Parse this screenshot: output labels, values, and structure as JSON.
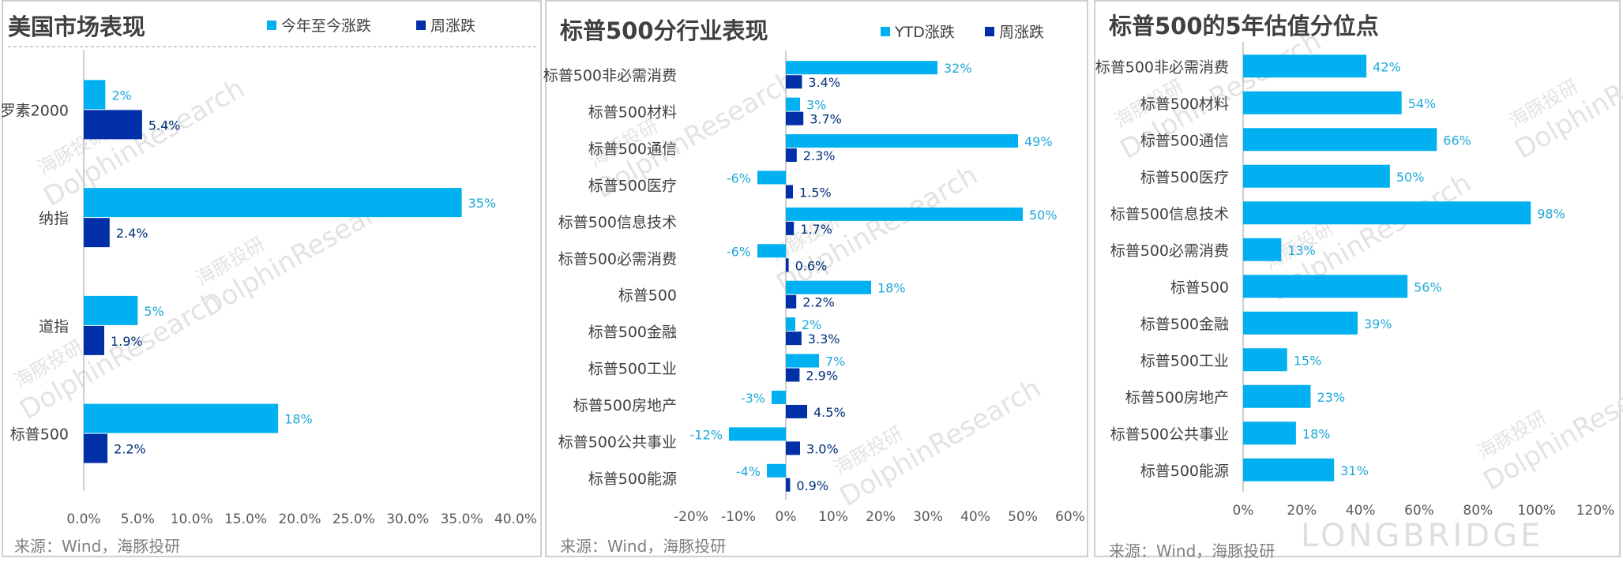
{
  "colors": {
    "ytd": "#00B0F0",
    "weekly": "#002FA7",
    "axis": "#bfbfbf",
    "label_ytd": "#1fa8d8",
    "label_weekly": "#002f7a"
  },
  "watermark": {
    "brand_en": "DolphinResearch",
    "brand_cn": "海豚投研",
    "logo": "LONGBRIDGE"
  },
  "chart_data": [
    {
      "type": "bar",
      "orientation": "horizontal",
      "title": "美国市场表现",
      "categories": [
        "罗素2000",
        "纳指",
        "道指",
        "标普500"
      ],
      "series": [
        {
          "name": "今年至今涨跌",
          "values": [
            2,
            35,
            5,
            18
          ],
          "labels": [
            "2%",
            "35%",
            "5%",
            "18%"
          ]
        },
        {
          "name": "周涨跌",
          "values": [
            5.4,
            2.4,
            1.9,
            2.2
          ],
          "labels": [
            "5.4%",
            "2.4%",
            "1.9%",
            "2.2%"
          ]
        }
      ],
      "xlim": [
        0,
        40
      ],
      "xticks": [
        "0.0%",
        "5.0%",
        "10.0%",
        "15.0%",
        "20.0%",
        "25.0%",
        "30.0%",
        "35.0%",
        "40.0%"
      ],
      "legend": "top",
      "source": "来源：Wind，海豚投研"
    },
    {
      "type": "bar",
      "orientation": "horizontal",
      "title": "标普500分行业表现",
      "categories": [
        "标普500非必需消费",
        "标普500材料",
        "标普500通信",
        "标普500医疗",
        "标普500信息技术",
        "标普500必需消费",
        "标普500",
        "标普500金融",
        "标普500工业",
        "标普500房地产",
        "标普500公共事业",
        "标普500能源"
      ],
      "series": [
        {
          "name": "YTD涨跌",
          "values": [
            32,
            3,
            49,
            -6,
            50,
            -6,
            18,
            2,
            7,
            -3,
            -12,
            -4
          ],
          "labels": [
            "32%",
            "3%",
            "49%",
            "-6%",
            "50%",
            "-6%",
            "18%",
            "2%",
            "7%",
            "-3%",
            "-12%",
            "-4%"
          ]
        },
        {
          "name": "周涨跌",
          "values": [
            3.4,
            3.7,
            2.3,
            1.5,
            1.7,
            0.6,
            2.2,
            3.3,
            2.9,
            4.5,
            3.0,
            0.9
          ],
          "labels": [
            "3.4%",
            "3.7%",
            "2.3%",
            "1.5%",
            "1.7%",
            "0.6%",
            "2.2%",
            "3.3%",
            "2.9%",
            "4.5%",
            "3.0%",
            "0.9%"
          ]
        }
      ],
      "xlim": [
        -20,
        60
      ],
      "xticks": [
        "-20%",
        "-10%",
        "0%",
        "10%",
        "20%",
        "30%",
        "40%",
        "50%",
        "60%"
      ],
      "legend": "top",
      "source": "来源：Wind，海豚投研"
    },
    {
      "type": "bar",
      "orientation": "horizontal",
      "title": "标普500的5年估值分位点",
      "categories": [
        "标普500非必需消费",
        "标普500材料",
        "标普500通信",
        "标普500医疗",
        "标普500信息技术",
        "标普500必需消费",
        "标普500",
        "标普500金融",
        "标普500工业",
        "标普500房地产",
        "标普500公共事业",
        "标普500能源"
      ],
      "series": [
        {
          "values": [
            42,
            54,
            66,
            50,
            98,
            13,
            56,
            39,
            15,
            23,
            18,
            31
          ],
          "labels": [
            "42%",
            "54%",
            "66%",
            "50%",
            "98%",
            "13%",
            "56%",
            "39%",
            "15%",
            "23%",
            "18%",
            "31%"
          ]
        }
      ],
      "xlim": [
        0,
        120
      ],
      "xticks": [
        "0%",
        "20%",
        "40%",
        "60%",
        "80%",
        "100%",
        "120%"
      ],
      "source": "来源：Wind，海豚投研"
    }
  ]
}
